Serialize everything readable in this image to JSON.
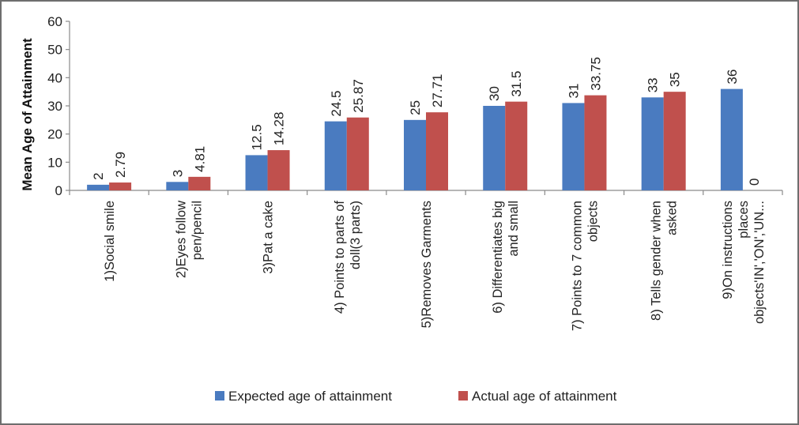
{
  "chart_data": {
    "type": "bar",
    "title": "",
    "xlabel": "",
    "ylabel": "Mean Age of Attainment",
    "ylim": [
      0,
      60
    ],
    "yticks": [
      0,
      10,
      20,
      30,
      40,
      50,
      60
    ],
    "grid": false,
    "legend_position": "bottom",
    "categories": [
      [
        "1)Social smile"
      ],
      [
        "2)Eyes follow",
        "pen/pencil"
      ],
      [
        "3)Pat a cake"
      ],
      [
        "4) Points to parts of",
        "doll(3 parts)"
      ],
      [
        "5)Removes Garments"
      ],
      [
        "6) Differentiates big",
        "and small"
      ],
      [
        "7) Points to 7 common",
        "objects"
      ],
      [
        "8) Tells gender when",
        "asked"
      ],
      [
        "9)On instructions",
        "places",
        "objects'IN','ON','UN..."
      ]
    ],
    "series": [
      {
        "name": "Expected age of attainment",
        "color": "#4a7bc0",
        "values": [
          2,
          3,
          12.5,
          24.5,
          25,
          30,
          31,
          33,
          36
        ],
        "labels": [
          "2",
          "3",
          "12.5",
          "24.5",
          "25",
          "30",
          "31",
          "33",
          "36"
        ]
      },
      {
        "name": "Actual age of attainment",
        "color": "#c0504d",
        "values": [
          2.79,
          4.81,
          14.28,
          25.87,
          27.71,
          31.5,
          33.75,
          35,
          0
        ],
        "labels": [
          "2.79",
          "4.81",
          "14.28",
          "25.87",
          "27.71",
          "31.5",
          "33.75",
          "35",
          "0"
        ]
      }
    ]
  }
}
